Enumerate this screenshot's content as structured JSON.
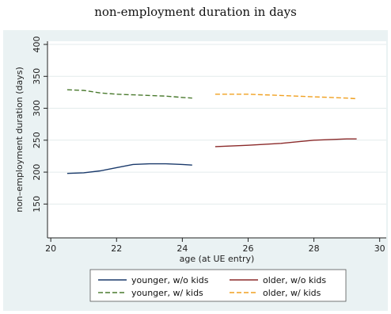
{
  "title": "non-employment duration in days",
  "chart_data": {
    "type": "line",
    "xlabel": "age (at UE entry)",
    "ylabel": "non–employment duration (days)",
    "xlim": [
      19.9,
      30.2
    ],
    "ylim": [
      97,
      405
    ],
    "xticks": [
      20,
      22,
      24,
      26,
      28,
      30
    ],
    "yticks": [
      150,
      200,
      250,
      300,
      350,
      400
    ],
    "grid": "horizontal",
    "legend_position": "bottom",
    "series": [
      {
        "name": "younger, w/o kids",
        "color": "#1a3a6b",
        "dash": "solid",
        "x": [
          20.5,
          21.0,
          21.5,
          22.0,
          22.5,
          23.0,
          23.5,
          24.0,
          24.3
        ],
        "y": [
          198,
          199,
          202,
          207,
          212,
          213,
          213,
          212,
          211
        ]
      },
      {
        "name": "older, w/o kids",
        "color": "#8b2a2a",
        "dash": "solid",
        "x": [
          25.0,
          26.0,
          27.0,
          28.0,
          29.0,
          29.3
        ],
        "y": [
          240,
          242,
          245,
          250,
          252,
          252
        ]
      },
      {
        "name": "younger, w/ kids",
        "color": "#4a7a2e",
        "dash": "dashed",
        "x": [
          20.5,
          21.0,
          21.5,
          22.0,
          22.5,
          23.0,
          23.5,
          24.0,
          24.3
        ],
        "y": [
          329,
          328,
          324,
          322,
          321,
          320,
          319,
          317,
          316
        ]
      },
      {
        "name": "older, w/ kids",
        "color": "#f0a020",
        "dash": "dashed",
        "x": [
          25.0,
          26.0,
          27.0,
          28.0,
          29.0,
          29.3
        ],
        "y": [
          322,
          322,
          320,
          318,
          316,
          315
        ]
      }
    ]
  }
}
